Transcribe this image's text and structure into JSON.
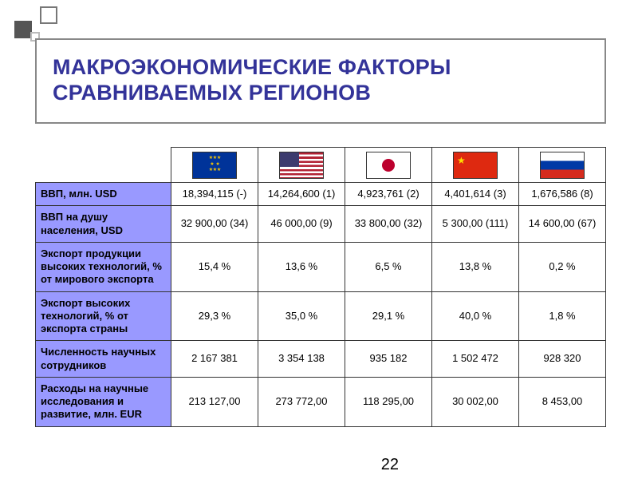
{
  "title_line1": "МАКРОЭКОНОМИЧЕСКИЕ ФАКТОРЫ",
  "title_line2": "СРАВНИВАЕМЫХ РЕГИОНОВ",
  "flags": [
    "eu",
    "us",
    "jp",
    "cn",
    "ru"
  ],
  "flag_names": [
    "eu-flag",
    "us-flag",
    "jp-flag",
    "cn-flag",
    "ru-flag"
  ],
  "rows": [
    {
      "label": "ВВП, млн. USD",
      "cells": [
        "18,394,115 (-)",
        "14,264,600 (1)",
        "4,923,761 (2)",
        "4,401,614 (3)",
        "1,676,586 (8)"
      ]
    },
    {
      "label": "ВВП на душу населения, USD",
      "cells": [
        "32 900,00 (34)",
        "46 000,00 (9)",
        "33 800,00 (32)",
        "5 300,00 (111)",
        "14 600,00 (67)"
      ]
    },
    {
      "label": "Экспорт продукции высоких технологий, % от мирового экспорта",
      "cells": [
        "15,4 %",
        "13,6 %",
        "6,5 %",
        "13,8 %",
        "0,2 %"
      ]
    },
    {
      "label": "Экспорт высоких технологий,  % от экспорта страны",
      "cells": [
        "29,3 %",
        "35,0 %",
        "29,1 %",
        "40,0 %",
        "1,8 %"
      ]
    },
    {
      "label": "Численность научных сотрудников",
      "cells": [
        "2 167 381",
        "3 354 138",
        "935 182",
        "1 502 472",
        "928 320"
      ]
    },
    {
      "label": "Расходы на научные исследования и развитие, млн. EUR",
      "cells": [
        "213 127,00",
        "273 772,00",
        "118 295,00",
        "30 002,00",
        "8 453,00"
      ]
    }
  ],
  "page_number": "22",
  "colors": {
    "title_text": "#333399",
    "label_bg": "#9999ff",
    "border": "#333333"
  }
}
